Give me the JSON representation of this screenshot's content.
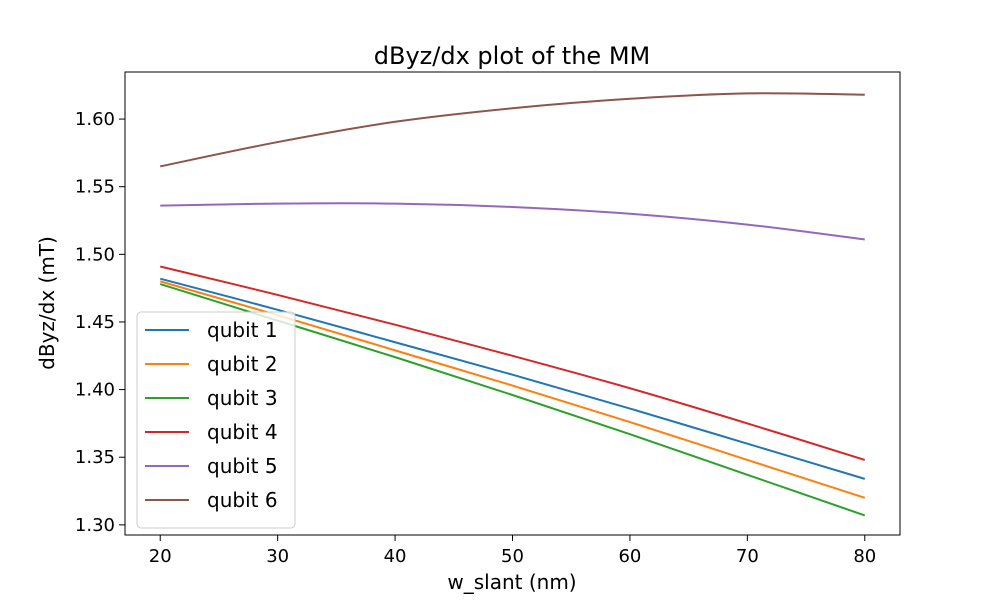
{
  "chart_data": {
    "type": "line",
    "title": "dByz/dx plot of the MM",
    "xlabel": "w_slant (nm)",
    "ylabel": "dByz/dx (mT)",
    "xlim": [
      17,
      83
    ],
    "ylim": [
      1.2925,
      1.6348
    ],
    "xticks": [
      20,
      30,
      40,
      50,
      60,
      70,
      80
    ],
    "xtick_labels": [
      "20",
      "30",
      "40",
      "50",
      "60",
      "70",
      "80"
    ],
    "yticks": [
      1.3,
      1.35,
      1.4,
      1.45,
      1.5,
      1.55,
      1.6
    ],
    "ytick_labels": [
      "1.30",
      "1.35",
      "1.40",
      "1.45",
      "1.50",
      "1.55",
      "1.60"
    ],
    "grid": false,
    "legend_position": "lower-left",
    "x": [
      20,
      30,
      40,
      50,
      60,
      70,
      80
    ],
    "series": [
      {
        "name": "qubit 1",
        "color": "#1f77b4",
        "values": [
          1.482,
          1.459,
          1.435,
          1.411,
          1.386,
          1.36,
          1.334
        ]
      },
      {
        "name": "qubit 2",
        "color": "#ff7f0e",
        "values": [
          1.48,
          1.455,
          1.429,
          1.403,
          1.376,
          1.348,
          1.32
        ]
      },
      {
        "name": "qubit 3",
        "color": "#2ca02c",
        "values": [
          1.478,
          1.451,
          1.424,
          1.396,
          1.367,
          1.337,
          1.307
        ]
      },
      {
        "name": "qubit 4",
        "color": "#d62728",
        "values": [
          1.491,
          1.47,
          1.448,
          1.425,
          1.401,
          1.375,
          1.348
        ]
      },
      {
        "name": "qubit 5",
        "color": "#9467bd",
        "values": [
          1.536,
          1.5375,
          1.5375,
          1.535,
          1.53,
          1.522,
          1.511
        ]
      },
      {
        "name": "qubit 6",
        "color": "#8c564b",
        "values": [
          1.565,
          1.583,
          1.598,
          1.608,
          1.615,
          1.619,
          1.618
        ]
      }
    ]
  }
}
